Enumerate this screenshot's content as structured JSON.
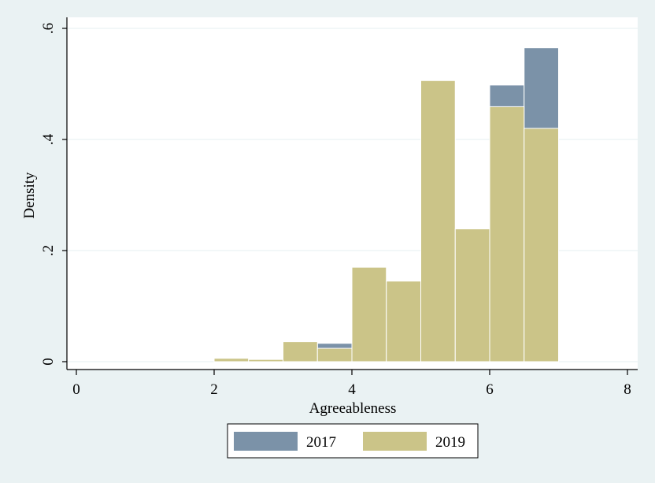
{
  "chart_data": {
    "type": "bar",
    "subtype": "overlaid-histogram",
    "title": "",
    "xlabel": "Agreeableness",
    "ylabel": "Density",
    "xlim": [
      0,
      8
    ],
    "ylim": [
      0,
      0.6
    ],
    "x_ticks": [
      {
        "value": 0,
        "label": "0"
      },
      {
        "value": 2,
        "label": "2"
      },
      {
        "value": 4,
        "label": "4"
      },
      {
        "value": 6,
        "label": "6"
      },
      {
        "value": 8,
        "label": "8"
      }
    ],
    "y_ticks": [
      {
        "value": 0,
        "label": "0"
      },
      {
        "value": 0.2,
        "label": ".2"
      },
      {
        "value": 0.4,
        "label": ".4"
      },
      {
        "value": 0.6,
        "label": ".6"
      }
    ],
    "bin_edges": [
      2,
      2.5,
      3,
      3.5,
      4,
      4.5,
      5,
      5.5,
      6,
      6.5,
      7
    ],
    "series": [
      {
        "name": "2017",
        "color": "#7b92a8",
        "values": [
          0.006,
          0.004,
          0.036,
          0.033,
          0.17,
          0.145,
          0.506,
          0.239,
          0.498,
          0.565
        ]
      },
      {
        "name": "2019",
        "color": "#cbc488",
        "values": [
          0.006,
          0.004,
          0.036,
          0.024,
          0.17,
          0.145,
          0.506,
          0.239,
          0.459,
          0.42
        ]
      }
    ],
    "grid": true,
    "legend_position": "bottom"
  },
  "colors": {
    "background": "#eaf2f3",
    "plot_background": "#ffffff",
    "gridline": "#eaf2f3",
    "bar_outline": "#ffffff"
  }
}
